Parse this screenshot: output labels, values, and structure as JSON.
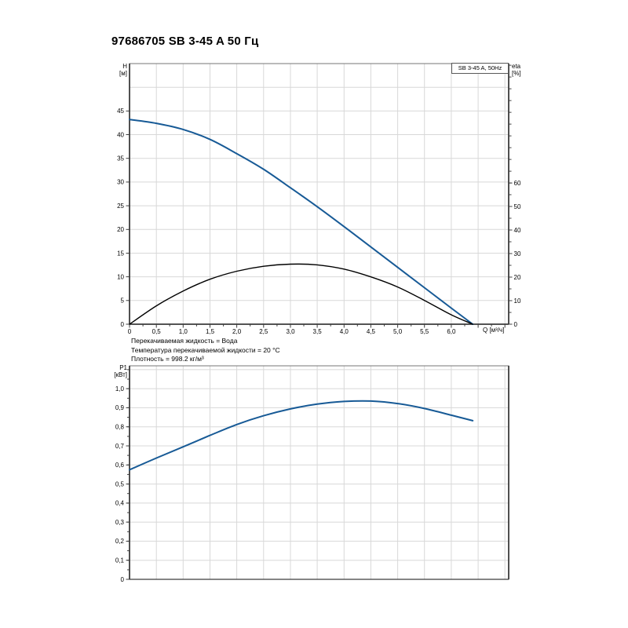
{
  "title": "97686705 SB 3-45 A 50 Гц",
  "notes": {
    "line1": "Перекачиваемая жидкость = Вода",
    "line2": "Температура перекачиваемой жидкости = 20 °C",
    "line3": "Плотность = 998.2 кг/м³"
  },
  "colors": {
    "curve_primary": "#175a96",
    "curve_secondary": "#000000",
    "grid": "#d8d8d8",
    "frame": "#767676",
    "axis": "#3c3c3c",
    "text": "#000000",
    "background": "#ffffff"
  },
  "chart_data": [
    {
      "id": "head-flow-chart",
      "type": "line",
      "legend": "SB 3-45 A, 50Hz",
      "legend_position": "top-right",
      "xlabel": "Q [м³/ч]",
      "ylabel_left_lines": [
        "H",
        "[м]"
      ],
      "ylabel_right_lines": [
        "eta",
        "[%]"
      ],
      "xlim": [
        0,
        7.07
      ],
      "ylim_left": [
        0,
        55
      ],
      "ylim_right": [
        0,
        110.7
      ],
      "grid": true,
      "x_grid_step": 0.5,
      "y_grid_step": 5,
      "x_ticks_visible": true,
      "x_minor_step": 0.25,
      "x_major_ticks": [
        0,
        0.5,
        1,
        1.5,
        2,
        2.5,
        3,
        3.5,
        4,
        4.5,
        5,
        5.5,
        6,
        6.5,
        7
      ],
      "x_tick_labels": [
        "0",
        "0,5",
        "1,0",
        "1,5",
        "2,0",
        "2,5",
        "3,0",
        "3,5",
        "4,0",
        "4,5",
        "5,0",
        "5,5",
        "6,0",
        "",
        ""
      ],
      "y_left_ticks": [
        0,
        5,
        10,
        15,
        20,
        25,
        30,
        35,
        40,
        45
      ],
      "y_left_tick_labels": [
        "0",
        "5",
        "10",
        "15",
        "20",
        "25",
        "30",
        "35",
        "40",
        "45"
      ],
      "y_left_minor_step": 0,
      "y_right_ticks": [
        0,
        10,
        20,
        30,
        40,
        50,
        60
      ],
      "y_right_tick_labels": [
        "0",
        "10",
        "20",
        "30",
        "40",
        "50",
        "60"
      ],
      "y_right_minor_step": 5,
      "y_right_minor_max": 110,
      "series": [
        {
          "name": "H curve SB 3-45 A 50Hz",
          "axis": "left",
          "color": "#175a96",
          "width": 2,
          "x": [
            0,
            0.5,
            1,
            1.5,
            2,
            2.5,
            3,
            3.5,
            4,
            4.5,
            5,
            5.5,
            6,
            6.4
          ],
          "y": [
            43.2,
            42.4,
            41.1,
            39.0,
            36.0,
            32.7,
            28.8,
            24.8,
            20.6,
            16.3,
            12.0,
            7.7,
            3.4,
            0
          ]
        },
        {
          "name": "eta curve",
          "axis": "right",
          "color": "#000000",
          "width": 1.4,
          "x": [
            0,
            0.5,
            1,
            1.5,
            2,
            2.5,
            3,
            3.5,
            4,
            4.5,
            5,
            5.5,
            6,
            6.4
          ],
          "y": [
            0,
            7.8,
            14.1,
            19.1,
            22.5,
            24.6,
            25.5,
            25.2,
            23.4,
            20.1,
            15.8,
            10.1,
            4.0,
            0
          ]
        }
      ]
    },
    {
      "id": "power-flow-chart",
      "type": "line",
      "legend": "",
      "xlabel": "",
      "ylabel_left_lines": [
        "P1",
        "[кВт]"
      ],
      "xlim": [
        0,
        7.07
      ],
      "ylim_left": [
        0,
        1.12
      ],
      "grid": true,
      "x_grid_step": 0.5,
      "y_grid_step": 0.1,
      "x_ticks_visible": false,
      "x_minor_step": 0,
      "x_major_ticks": [],
      "x_tick_labels": [],
      "y_left_ticks": [
        0,
        0.1,
        0.2,
        0.3,
        0.4,
        0.5,
        0.6,
        0.7,
        0.8,
        0.9,
        1.0
      ],
      "y_left_tick_labels": [
        "0",
        "0,1",
        "0,2",
        "0,3",
        "0,4",
        "0,5",
        "0,6",
        "0,7",
        "0,8",
        "0,9",
        "1,0"
      ],
      "y_left_minor_step": 0.05,
      "series": [
        {
          "name": "P1 curve",
          "axis": "left",
          "color": "#175a96",
          "width": 2,
          "x": [
            0,
            0.5,
            1,
            1.5,
            2,
            2.5,
            3,
            3.5,
            4,
            4.5,
            5,
            5.5,
            6,
            6.4
          ],
          "y": [
            0.575,
            0.636,
            0.695,
            0.755,
            0.812,
            0.858,
            0.894,
            0.919,
            0.933,
            0.935,
            0.922,
            0.896,
            0.861,
            0.832
          ]
        }
      ]
    }
  ]
}
